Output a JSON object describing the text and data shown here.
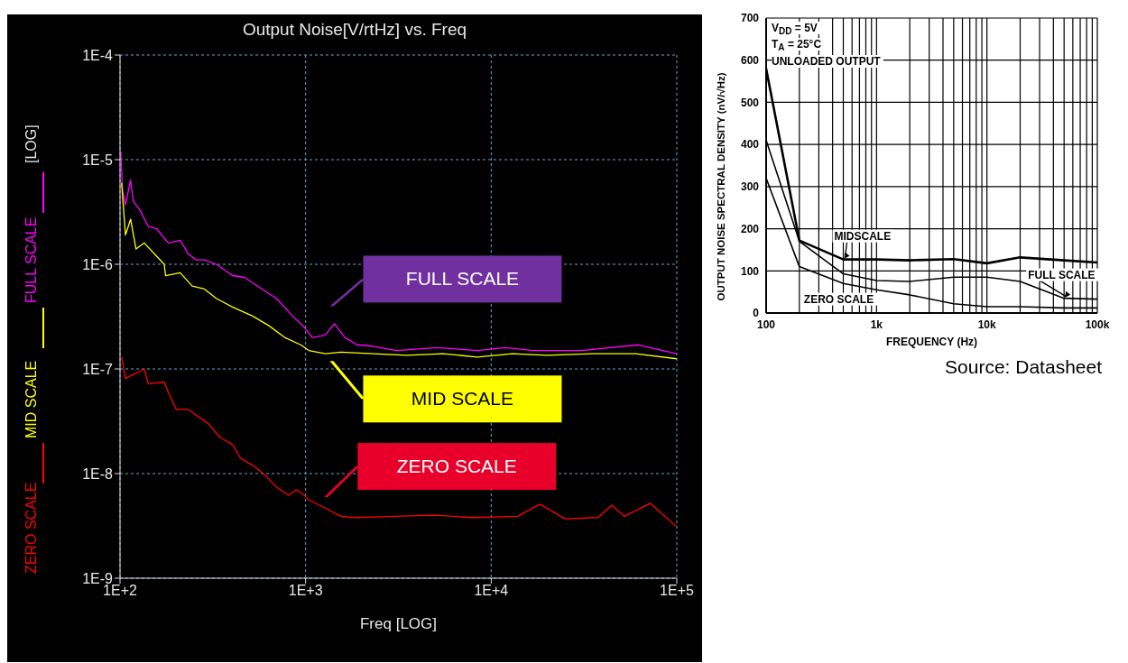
{
  "chart_data": [
    {
      "type": "line",
      "title": "Output Noise[V/rtHz] vs. Freq",
      "xlabel": "Freq  [LOG]",
      "ylabel": "[LOG]",
      "log": "xy",
      "grid": true,
      "legend": "left",
      "xlim": [
        100,
        100000
      ],
      "ylim": [
        1e-09,
        0.0001
      ],
      "xticks": [
        {
          "value": 100,
          "label": "1E+2"
        },
        {
          "value": 1000,
          "label": "1E+3"
        },
        {
          "value": 10000,
          "label": "1E+4"
        },
        {
          "value": 100000,
          "label": "1E+5"
        }
      ],
      "yticks": [
        {
          "value": 1e-09,
          "label": "1E-9"
        },
        {
          "value": 1e-08,
          "label": "1E-8"
        },
        {
          "value": 1e-07,
          "label": "1E-7"
        },
        {
          "value": 1e-06,
          "label": "1E-6"
        },
        {
          "value": 1e-05,
          "label": "1E-5"
        },
        {
          "value": 0.0001,
          "label": "1E-4"
        }
      ],
      "series": [
        {
          "name": "FULL SCALE",
          "color": "#ff00ff",
          "x": [
            101,
            103,
            107,
            114,
            118,
            128,
            142,
            157,
            182,
            211,
            233,
            258,
            285,
            331,
            404,
            469,
            600,
            698,
            850,
            984,
            1085,
            1270,
            1430,
            1630,
            1890,
            2300,
            3100,
            5100,
            8400,
            11900,
            16900,
            30700,
            61800,
            100000
          ],
          "values": [
            1.2e-05,
            5.2e-06,
            3.7e-06,
            6.4e-06,
            4e-06,
            3.3e-06,
            2.3e-06,
            2.2e-06,
            1.6e-06,
            1.7e-06,
            1.26e-06,
            1.1e-06,
            1.1e-06,
            1e-06,
            7.8e-07,
            7.5e-07,
            5.6e-07,
            4.7e-07,
            3.2e-07,
            2.5e-07,
            2e-07,
            2.1e-07,
            2.7e-07,
            2e-07,
            1.7e-07,
            1.65e-07,
            1.5e-07,
            1.6e-07,
            1.5e-07,
            1.6e-07,
            1.5e-07,
            1.5e-07,
            1.7e-07,
            1.4e-07
          ]
        },
        {
          "name": "MID SCALE",
          "color": "#ffff00",
          "x": [
            102,
            105,
            107,
            114,
            122,
            135,
            157,
            173,
            176,
            211,
            245,
            285,
            331,
            404,
            518,
            632,
            771,
            941,
            1040,
            1280,
            1550,
            2300,
            3500,
            5500,
            8400,
            13000,
            20000,
            35000,
            60000,
            100000
          ],
          "values": [
            6e-06,
            3e-06,
            1.9e-06,
            2.7e-06,
            1.4e-06,
            1.6e-06,
            1.2e-06,
            1e-06,
            7.8e-07,
            8.3e-07,
            6.2e-07,
            5.8e-07,
            4.7e-07,
            3.9e-07,
            3.2e-07,
            2.6e-07,
            2e-07,
            1.7e-07,
            1.5e-07,
            1.4e-07,
            1.45e-07,
            1.4e-07,
            1.35e-07,
            1.4e-07,
            1.3e-07,
            1.4e-07,
            1.35e-07,
            1.4e-07,
            1.4e-07,
            1.25e-07
          ]
        },
        {
          "name": "ZERO SCALE",
          "color": "#ff0000",
          "x": [
            102,
            107,
            135,
            142,
            173,
            182,
            201,
            233,
            299,
            347,
            404,
            446,
            518,
            600,
            698,
            810,
            895,
            984,
            1040,
            1270,
            1550,
            1890,
            3000,
            5000,
            8000,
            13900,
            18300,
            25000,
            37600,
            44600,
            52300,
            72000,
            100000
          ],
          "values": [
            1.3e-07,
            8.1e-08,
            1e-07,
            7.2e-08,
            7.5e-08,
            6e-08,
            4.1e-08,
            4.1e-08,
            3e-08,
            2.2e-08,
            1.9e-08,
            1.4e-08,
            1.2e-08,
            9.8e-09,
            7.4e-09,
            6.2e-09,
            7e-09,
            6.2e-09,
            5.6e-09,
            4.7e-09,
            3.9e-09,
            3.8e-09,
            3.9e-09,
            4e-09,
            3.8e-09,
            3.9e-09,
            5.1e-09,
            3.7e-09,
            3.8e-09,
            5e-09,
            3.9e-09,
            5.2e-09,
            3.1e-09
          ]
        }
      ],
      "annotations": [
        "FULL SCALE",
        "MID SCALE",
        "ZERO SCALE"
      ]
    },
    {
      "type": "line",
      "xlabel": "FREQUENCY (Hz)",
      "ylabel": "OUTPUT NOISE SPECTRAL DENSITY (nV/√Hz)",
      "log": "x",
      "grid": true,
      "xlim": [
        100,
        100000
      ],
      "ylim": [
        0,
        700
      ],
      "xticks": [
        100,
        {
          "value": 200,
          "label": null
        },
        {
          "value": 300,
          "label": null
        },
        {
          "value": 400,
          "label": null
        },
        {
          "value": 500,
          "label": null
        },
        {
          "value": 600,
          "label": null
        },
        {
          "value": 700,
          "label": null
        },
        {
          "value": 800,
          "label": null
        },
        {
          "value": 900,
          "label": null
        },
        {
          "value": 1000,
          "label": "1k"
        },
        {
          "value": 2000,
          "label": null
        },
        {
          "value": 3000,
          "label": null
        },
        {
          "value": 4000,
          "label": null
        },
        {
          "value": 5000,
          "label": null
        },
        {
          "value": 6000,
          "label": null
        },
        {
          "value": 7000,
          "label": null
        },
        {
          "value": 8000,
          "label": null
        },
        {
          "value": 9000,
          "label": null
        },
        {
          "value": 10000,
          "label": "10k"
        },
        {
          "value": 20000,
          "label": null
        },
        {
          "value": 30000,
          "label": null
        },
        {
          "value": 40000,
          "label": null
        },
        {
          "value": 50000,
          "label": null
        },
        {
          "value": 60000,
          "label": null
        },
        {
          "value": 70000,
          "label": null
        },
        {
          "value": 80000,
          "label": null
        },
        {
          "value": 90000,
          "label": null
        },
        {
          "value": 100000,
          "label": "100k"
        }
      ],
      "yticks": [
        0,
        100,
        200,
        300,
        400,
        500,
        600,
        700
      ],
      "x": [
        100,
        200,
        500,
        1000,
        2000,
        5000,
        10000,
        20000,
        50000,
        100000
      ],
      "series": [
        {
          "name": "MIDSCALE",
          "color": "#000000",
          "values": [
            580,
            172,
            127,
            127,
            125,
            128,
            118,
            132,
            125,
            120
          ]
        },
        {
          "name": "FULL SCALE",
          "color": "#000000",
          "values": [
            410,
            170,
            93,
            77,
            75,
            85,
            85,
            75,
            35,
            33
          ]
        },
        {
          "name": "ZERO SCALE",
          "color": "#000000",
          "values": [
            320,
            110,
            70,
            55,
            43,
            22,
            15,
            15,
            12,
            12
          ]
        }
      ],
      "annotations": [
        "V$_{DD}$ = 5V",
        "T$_{A}$ = 25°C",
        "UNLOADED OUTPUT",
        "Source: Datasheet"
      ]
    }
  ]
}
